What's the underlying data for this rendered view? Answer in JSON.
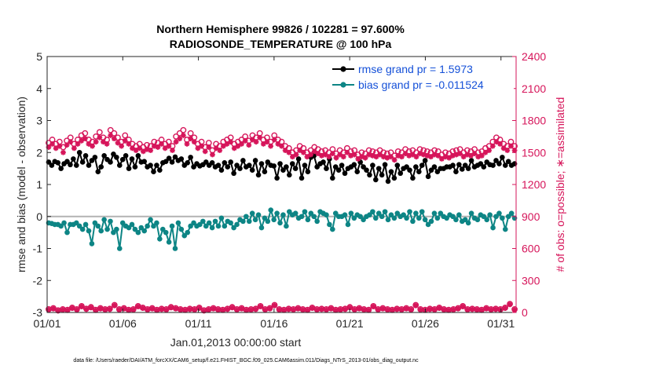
{
  "chart_data": {
    "type": "line",
    "title": "Northern Hemisphere 99826 / 102281 = 97.600%",
    "subtitle": "RADIOSONDE_TEMPERATURE @ 100 hPa",
    "xlabel": "Jan.01,2013 00:00:00 start",
    "ylabel_left": "rmse and bias (model - observation)",
    "ylabel_right": "# of obs: o=possible; ∗=assimilated",
    "footnote": "data file: /Users/raeder/DAI/ATM_forcXX/CAM6_setup/f.e21.FHIST_BGC.f09_025.CAM6assim.011/Diags_NTrS_2013-01/obs_diag_output.nc",
    "x_ticks": [
      "01/01",
      "01/06",
      "01/11",
      "01/16",
      "01/21",
      "01/26",
      "01/31"
    ],
    "x_tick_days": [
      1,
      6,
      11,
      16,
      21,
      26,
      31
    ],
    "xlim": [
      1,
      32
    ],
    "ylim_left": [
      -3,
      5
    ],
    "y_ticks_left": [
      -3,
      -2,
      -1,
      0,
      1,
      2,
      3,
      4,
      5
    ],
    "ylim_right": [
      0,
      2400
    ],
    "y_ticks_right": [
      0,
      300,
      600,
      900,
      1200,
      1500,
      1800,
      2100,
      2400
    ],
    "legend_position": "top-right",
    "colors": {
      "rmse": "#000000",
      "bias": "#0d8585",
      "obs": "#d6155a",
      "zero_line": "#b3b3b3",
      "legend_text": "#1450d8"
    },
    "series": [
      {
        "name": "rmse grand pr = 1.5973",
        "axis": "left",
        "marker": "filled-circle",
        "values": [
          1.7,
          1.6,
          1.72,
          1.68,
          1.5,
          1.65,
          1.72,
          1.62,
          1.8,
          1.6,
          2.0,
          1.7,
          1.9,
          1.6,
          1.75,
          1.85,
          1.4,
          1.55,
          1.9,
          1.78,
          1.7,
          1.95,
          1.85,
          1.6,
          1.78,
          1.9,
          1.5,
          1.8,
          1.55,
          1.9,
          1.7,
          1.72,
          1.55,
          1.6,
          1.4,
          1.6,
          1.45,
          1.68,
          1.72,
          1.82,
          1.7,
          1.86,
          1.75,
          1.8,
          1.6,
          1.68,
          1.85,
          1.55,
          1.65,
          1.58,
          1.62,
          1.7,
          1.6,
          1.68,
          1.55,
          1.6,
          1.45,
          1.68,
          1.55,
          1.7,
          1.35,
          1.6,
          1.5,
          1.75,
          1.55,
          1.6,
          1.45,
          1.75,
          1.3,
          1.65,
          1.4,
          1.7,
          1.6,
          1.58,
          1.2,
          1.65,
          1.45,
          1.55,
          1.3,
          1.65,
          1.5,
          1.8,
          1.2,
          1.6,
          1.4,
          1.85,
          1.9,
          1.55,
          1.65,
          1.7,
          1.5,
          1.8,
          1.2,
          1.55,
          1.45,
          1.6,
          1.35,
          1.5,
          1.55,
          1.62,
          1.4,
          1.7,
          1.55,
          1.45,
          1.3,
          1.6,
          1.15,
          1.5,
          1.3,
          1.62,
          1.1,
          1.4,
          1.2,
          1.6,
          1.35,
          1.5,
          1.55,
          1.45,
          1.2,
          1.55,
          1.4,
          1.6,
          1.75,
          1.25,
          1.45,
          1.55,
          1.4,
          1.5,
          1.5,
          1.55,
          1.55,
          1.6,
          1.4,
          1.62,
          1.48,
          1.6,
          1.5,
          1.75,
          1.55,
          1.6,
          1.65,
          1.55,
          1.7,
          1.62,
          1.6,
          1.75,
          1.65,
          1.85,
          1.6,
          1.72,
          1.6,
          1.65
        ]
      },
      {
        "name": "bias grand pr = -0.011524",
        "axis": "left",
        "marker": "filled-circle",
        "values": [
          -0.2,
          -0.22,
          -0.25,
          -0.25,
          -0.3,
          -0.2,
          -0.5,
          -0.25,
          -0.25,
          -0.2,
          -0.3,
          -0.4,
          -0.25,
          -0.45,
          -0.85,
          -0.2,
          -0.3,
          -0.45,
          -0.1,
          -0.4,
          -0.15,
          -0.5,
          -0.4,
          -1.0,
          -0.2,
          -0.3,
          -0.35,
          -0.25,
          -0.4,
          -0.5,
          -0.35,
          -0.45,
          -0.3,
          -0.1,
          -0.3,
          -0.2,
          -0.7,
          -0.4,
          -0.5,
          -0.8,
          -0.3,
          -1.0,
          -0.2,
          -0.4,
          -0.6,
          -0.5,
          -0.3,
          -0.2,
          -0.3,
          -0.25,
          -0.15,
          -0.3,
          -0.2,
          -0.35,
          -0.15,
          -0.3,
          -0.05,
          -0.3,
          -0.15,
          -0.2,
          -0.35,
          -0.25,
          -0.1,
          -0.15,
          0.0,
          -0.15,
          0.1,
          -0.1,
          0.05,
          -0.35,
          -0.05,
          -0.15,
          0.2,
          -0.1,
          0.1,
          -0.2,
          0.05,
          -0.3,
          0.15,
          0.05,
          0.1,
          -0.05,
          0.0,
          0.15,
          -0.1,
          0.1,
          0.0,
          -0.15,
          0.15,
          0.1,
          0.05,
          -0.25,
          -0.4,
          0.1,
          0.0,
          0.0,
          0.05,
          -0.25,
          0.1,
          -0.05,
          0.05,
          0.0,
          -0.1,
          0.0,
          0.05,
          0.15,
          -0.05,
          0.1,
          0.0,
          0.15,
          -0.1,
          0.05,
          -0.05,
          0.1,
          0.0,
          0.05,
          -0.05,
          0.15,
          -0.15,
          0.1,
          -0.05,
          0.15,
          -0.1,
          -0.25,
          -0.15,
          0.1,
          -0.05,
          0.1,
          0.0,
          -0.05,
          0.05,
          0.0,
          -0.1,
          0.05,
          -0.15,
          -0.1,
          -0.2,
          0.1,
          -0.05,
          -0.1,
          0.05,
          0.0,
          -0.1,
          0.05,
          -0.35,
          0.0,
          0.1,
          -0.05,
          -0.4,
          0.0,
          0.1,
          -0.05
        ]
      },
      {
        "name": "",
        "axis": "right",
        "marker": "open-circle",
        "values": [
          1590,
          1620,
          1580,
          1600,
          1550,
          1610,
          1640,
          1580,
          1620,
          1660,
          1680,
          1620,
          1600,
          1650,
          1690,
          1640,
          1620,
          1710,
          1680,
          1640,
          1600,
          1660,
          1620,
          1580,
          1560,
          1580,
          1550,
          1570,
          1560,
          1600,
          1590,
          1620,
          1580,
          1600,
          1560,
          1650,
          1680,
          1710,
          1620,
          1680,
          1640,
          1580,
          1600,
          1550,
          1590,
          1520,
          1580,
          1560,
          1600,
          1620,
          1640,
          1580,
          1600,
          1620,
          1650,
          1610,
          1660,
          1640,
          1680,
          1620,
          1640,
          1600,
          1660,
          1620,
          1600,
          1560,
          1540,
          1500,
          1520,
          1560,
          1540,
          1500,
          1520,
          1550,
          1530,
          1510,
          1520,
          1500,
          1530,
          1490,
          1520,
          1500,
          1540,
          1510,
          1520,
          1480,
          1500,
          1490,
          1520,
          1510,
          1500,
          1520,
          1500,
          1490,
          1500,
          1470,
          1510,
          1500,
          1530,
          1510,
          1520,
          1500,
          1530,
          1520,
          1510,
          1500,
          1520,
          1510,
          1480,
          1500,
          1490,
          1510,
          1520,
          1530,
          1500,
          1520,
          1510,
          1530,
          1500,
          1510,
          1540,
          1560,
          1600,
          1640,
          1620,
          1580,
          1560,
          1600,
          1560
        ]
      },
      {
        "name": "",
        "axis": "right",
        "marker": "asterisk",
        "values": [
          1550,
          1580,
          1540,
          1560,
          1500,
          1570,
          1600,
          1540,
          1580,
          1610,
          1630,
          1580,
          1560,
          1600,
          1640,
          1600,
          1580,
          1660,
          1630,
          1590,
          1560,
          1610,
          1580,
          1540,
          1520,
          1540,
          1510,
          1530,
          1520,
          1560,
          1550,
          1580,
          1540,
          1560,
          1520,
          1600,
          1630,
          1660,
          1580,
          1630,
          1600,
          1540,
          1560,
          1510,
          1550,
          1480,
          1540,
          1520,
          1560,
          1580,
          1600,
          1540,
          1560,
          1580,
          1610,
          1570,
          1620,
          1600,
          1640,
          1580,
          1600,
          1560,
          1620,
          1580,
          1560,
          1520,
          1500,
          1460,
          1480,
          1520,
          1500,
          1460,
          1480,
          1510,
          1490,
          1470,
          1480,
          1460,
          1490,
          1450,
          1480,
          1460,
          1500,
          1470,
          1480,
          1440,
          1460,
          1450,
          1480,
          1470,
          1460,
          1480,
          1460,
          1450,
          1460,
          1430,
          1470,
          1460,
          1490,
          1470,
          1480,
          1460,
          1490,
          1480,
          1470,
          1460,
          1480,
          1470,
          1440,
          1460,
          1450,
          1470,
          1480,
          1490,
          1460,
          1480,
          1470,
          1490,
          1460,
          1470,
          1500,
          1520,
          1560,
          1600,
          1580,
          1540,
          1520,
          1560,
          1520
        ]
      },
      {
        "name": "",
        "axis": "right",
        "marker": "open-circle",
        "values": [
          30,
          40,
          20,
          30,
          25,
          45,
          30,
          60,
          35,
          50,
          25,
          40,
          30,
          35,
          70,
          30,
          40,
          25,
          30,
          60,
          45,
          30,
          40,
          25,
          35,
          30,
          50,
          40,
          30,
          25,
          35,
          30,
          45,
          20,
          30,
          40,
          30,
          25,
          35,
          50,
          30,
          40,
          25,
          30,
          35,
          60,
          30,
          40,
          70,
          30,
          25,
          35,
          30,
          40,
          30,
          25,
          45,
          30,
          35,
          30,
          40,
          25,
          30,
          35,
          50,
          30,
          40,
          30,
          25,
          60,
          30,
          40,
          30,
          25,
          35,
          30,
          40,
          30,
          70,
          30,
          25,
          35,
          30,
          45,
          30,
          25,
          30,
          40,
          60,
          30,
          35,
          30,
          25,
          40,
          30,
          35,
          30,
          45,
          80,
          30
        ]
      },
      {
        "name": "",
        "axis": "right",
        "marker": "asterisk",
        "values": [
          25,
          35,
          15,
          25,
          20,
          40,
          25,
          55,
          30,
          45,
          20,
          35,
          25,
          30,
          65,
          25,
          35,
          20,
          25,
          55,
          40,
          25,
          35,
          20,
          30,
          25,
          45,
          35,
          25,
          20,
          30,
          25,
          40,
          15,
          25,
          35,
          25,
          20,
          30,
          45,
          25,
          35,
          20,
          25,
          30,
          55,
          25,
          35,
          65,
          25,
          20,
          30,
          25,
          35,
          25,
          20,
          40,
          25,
          30,
          25,
          35,
          20,
          25,
          30,
          45,
          25,
          35,
          25,
          20,
          55,
          25,
          35,
          25,
          20,
          30,
          25,
          35,
          25,
          65,
          25,
          20,
          30,
          25,
          40,
          25,
          20,
          25,
          35,
          55,
          25,
          30,
          25,
          20,
          35,
          25,
          30,
          25,
          40,
          75,
          25
        ]
      }
    ]
  }
}
